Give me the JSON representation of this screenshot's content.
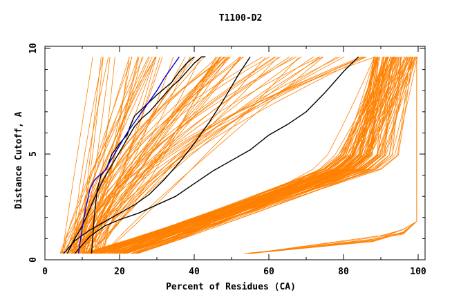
{
  "chart_data": {
    "type": "line",
    "title": "T1100-D2",
    "xlabel": "Percent of Residues (CA)",
    "ylabel": "Distance Cutoff, A",
    "xlim": [
      0,
      100
    ],
    "ylim": [
      0,
      10
    ],
    "x_ticks": [
      "0",
      "20",
      "40",
      "60",
      "80",
      "100"
    ],
    "y_ticks": [
      "0",
      "5",
      "10"
    ],
    "grid": false,
    "colors": {
      "background_models": "#ff8000",
      "highlight_models": "#000000",
      "reference_model": "#0000dd"
    },
    "highlighted_series": [
      {
        "x": [
          6,
          8,
          10,
          12,
          14,
          16,
          18,
          20,
          22,
          24,
          26,
          28,
          30,
          32,
          34,
          36,
          38,
          40,
          42,
          43
        ],
        "y": [
          0.3,
          1.0,
          1.6,
          2.4,
          3.2,
          3.9,
          4.5,
          5.1,
          5.7,
          6.3,
          6.7,
          7.0,
          7.4,
          7.8,
          8.2,
          8.5,
          8.9,
          9.3,
          9.6,
          9.6
        ]
      },
      {
        "x": [
          5,
          8,
          12,
          16,
          20,
          24,
          28,
          32,
          36,
          40,
          44,
          48,
          52,
          55
        ],
        "y": [
          0.3,
          0.9,
          1.4,
          1.8,
          2.2,
          2.6,
          3.1,
          3.8,
          4.6,
          5.5,
          6.5,
          7.6,
          8.8,
          9.6
        ]
      },
      {
        "x": [
          8,
          12,
          16,
          20,
          25,
          30,
          35,
          40,
          45,
          50,
          55,
          60,
          65,
          70,
          75,
          80,
          84
        ],
        "y": [
          0.3,
          1.1,
          1.6,
          1.9,
          2.2,
          2.6,
          3.0,
          3.6,
          4.2,
          4.7,
          5.2,
          5.9,
          6.4,
          7.0,
          7.9,
          8.9,
          9.6
        ]
      },
      {
        "x": [
          12.5,
          12.8,
          13.2,
          14,
          15,
          16.5,
          18,
          20,
          22,
          23,
          24,
          27,
          30,
          34,
          36,
          38,
          40
        ],
        "y": [
          0.3,
          1.0,
          2.0,
          3.3,
          4.0,
          4.3,
          5.0,
          5.5,
          5.9,
          6.4,
          6.8,
          7.3,
          7.8,
          8.4,
          8.9,
          9.3,
          9.6
        ]
      }
    ],
    "reference_series": {
      "x": [
        9,
        9.3,
        10,
        10.5,
        11,
        11.5,
        12,
        13,
        14,
        16,
        18,
        20,
        22,
        24,
        26,
        28,
        30,
        32,
        34,
        36
      ],
      "y": [
        0.3,
        0.7,
        1.5,
        2.0,
        2.5,
        2.9,
        3.3,
        3.7,
        3.9,
        4.2,
        4.8,
        5.4,
        6.0,
        6.5,
        7.0,
        7.5,
        8.0,
        8.6,
        9.1,
        9.6
      ]
    }
  }
}
